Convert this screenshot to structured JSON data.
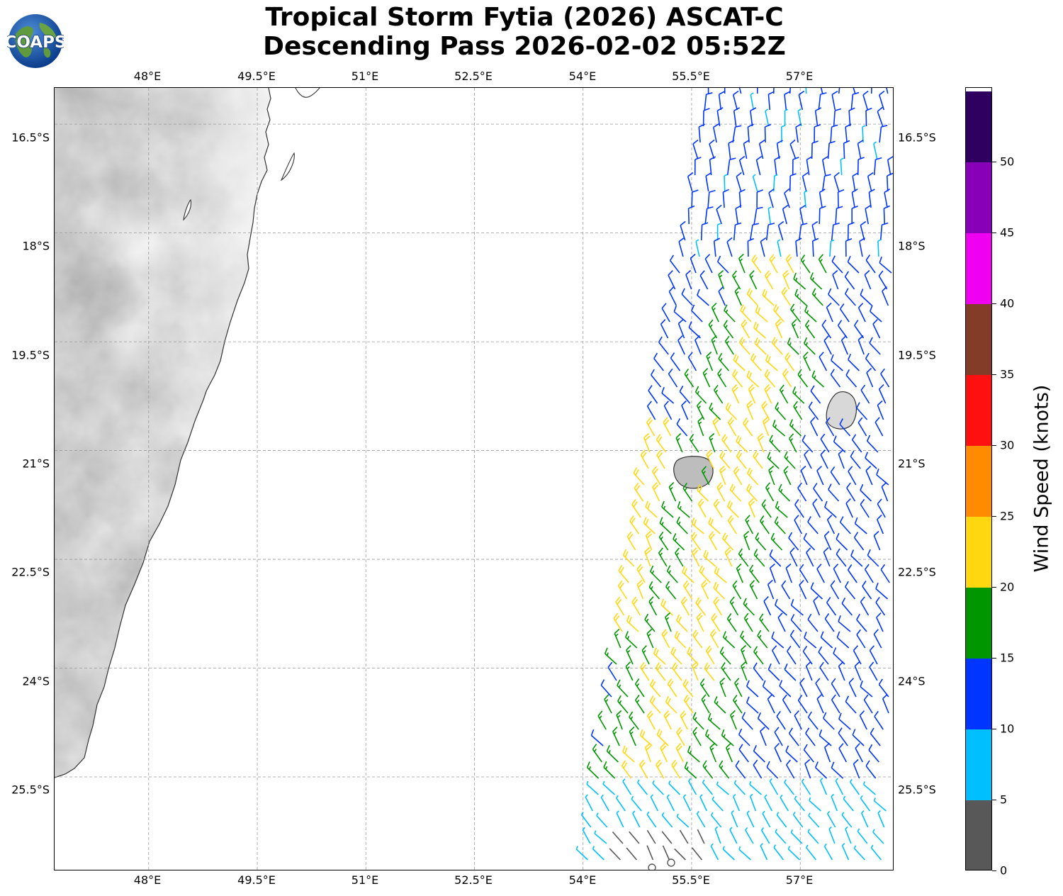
{
  "header": {
    "title_line1": "Tropical Storm Fytia (2026) ASCAT-C",
    "title_line2": "Descending Pass 2026-02-02 05:52Z",
    "logo_text": "COAPS"
  },
  "map": {
    "lon_range": [
      46.7,
      58.3
    ],
    "lat_range": [
      -26.8,
      -16.0
    ],
    "lon_ticks": [
      "48°E",
      "49.5°E",
      "51°E",
      "52.5°E",
      "54°E",
      "55.5°E",
      "57°E"
    ],
    "lon_tick_values": [
      48,
      49.5,
      51,
      52.5,
      54,
      55.5,
      57
    ],
    "lat_ticks": [
      "16.5°S",
      "18°S",
      "19.5°S",
      "21°S",
      "22.5°S",
      "24°S",
      "25.5°S"
    ],
    "lat_tick_values": [
      -16.5,
      -18,
      -19.5,
      -21,
      -22.5,
      -24,
      -25.5
    ],
    "gridlines": true,
    "land_shading": "grayscale terrain",
    "visible_features": [
      "Madagascar east coast",
      "Réunion",
      "Mauritius"
    ]
  },
  "colorbar": {
    "label": "Wind Speed (knots)",
    "ticks": [
      "0",
      "5",
      "10",
      "15",
      "20",
      "25",
      "30",
      "35",
      "40",
      "45",
      "50"
    ],
    "bins": [
      {
        "min": 0,
        "max": 5,
        "color": "#585858"
      },
      {
        "min": 5,
        "max": 10,
        "color": "#00bfff"
      },
      {
        "min": 10,
        "max": 15,
        "color": "#0034ff"
      },
      {
        "min": 15,
        "max": 20,
        "color": "#009600"
      },
      {
        "min": 20,
        "max": 25,
        "color": "#ffd711"
      },
      {
        "min": 25,
        "max": 30,
        "color": "#ff8c00"
      },
      {
        "min": 30,
        "max": 35,
        "color": "#ff1010"
      },
      {
        "min": 35,
        "max": 40,
        "color": "#833c28"
      },
      {
        "min": 40,
        "max": 45,
        "color": "#f000f0"
      },
      {
        "min": 45,
        "max": 50,
        "color": "#8800b8"
      },
      {
        "min": 50,
        "max": 55,
        "color": "#300060"
      }
    ]
  }
}
